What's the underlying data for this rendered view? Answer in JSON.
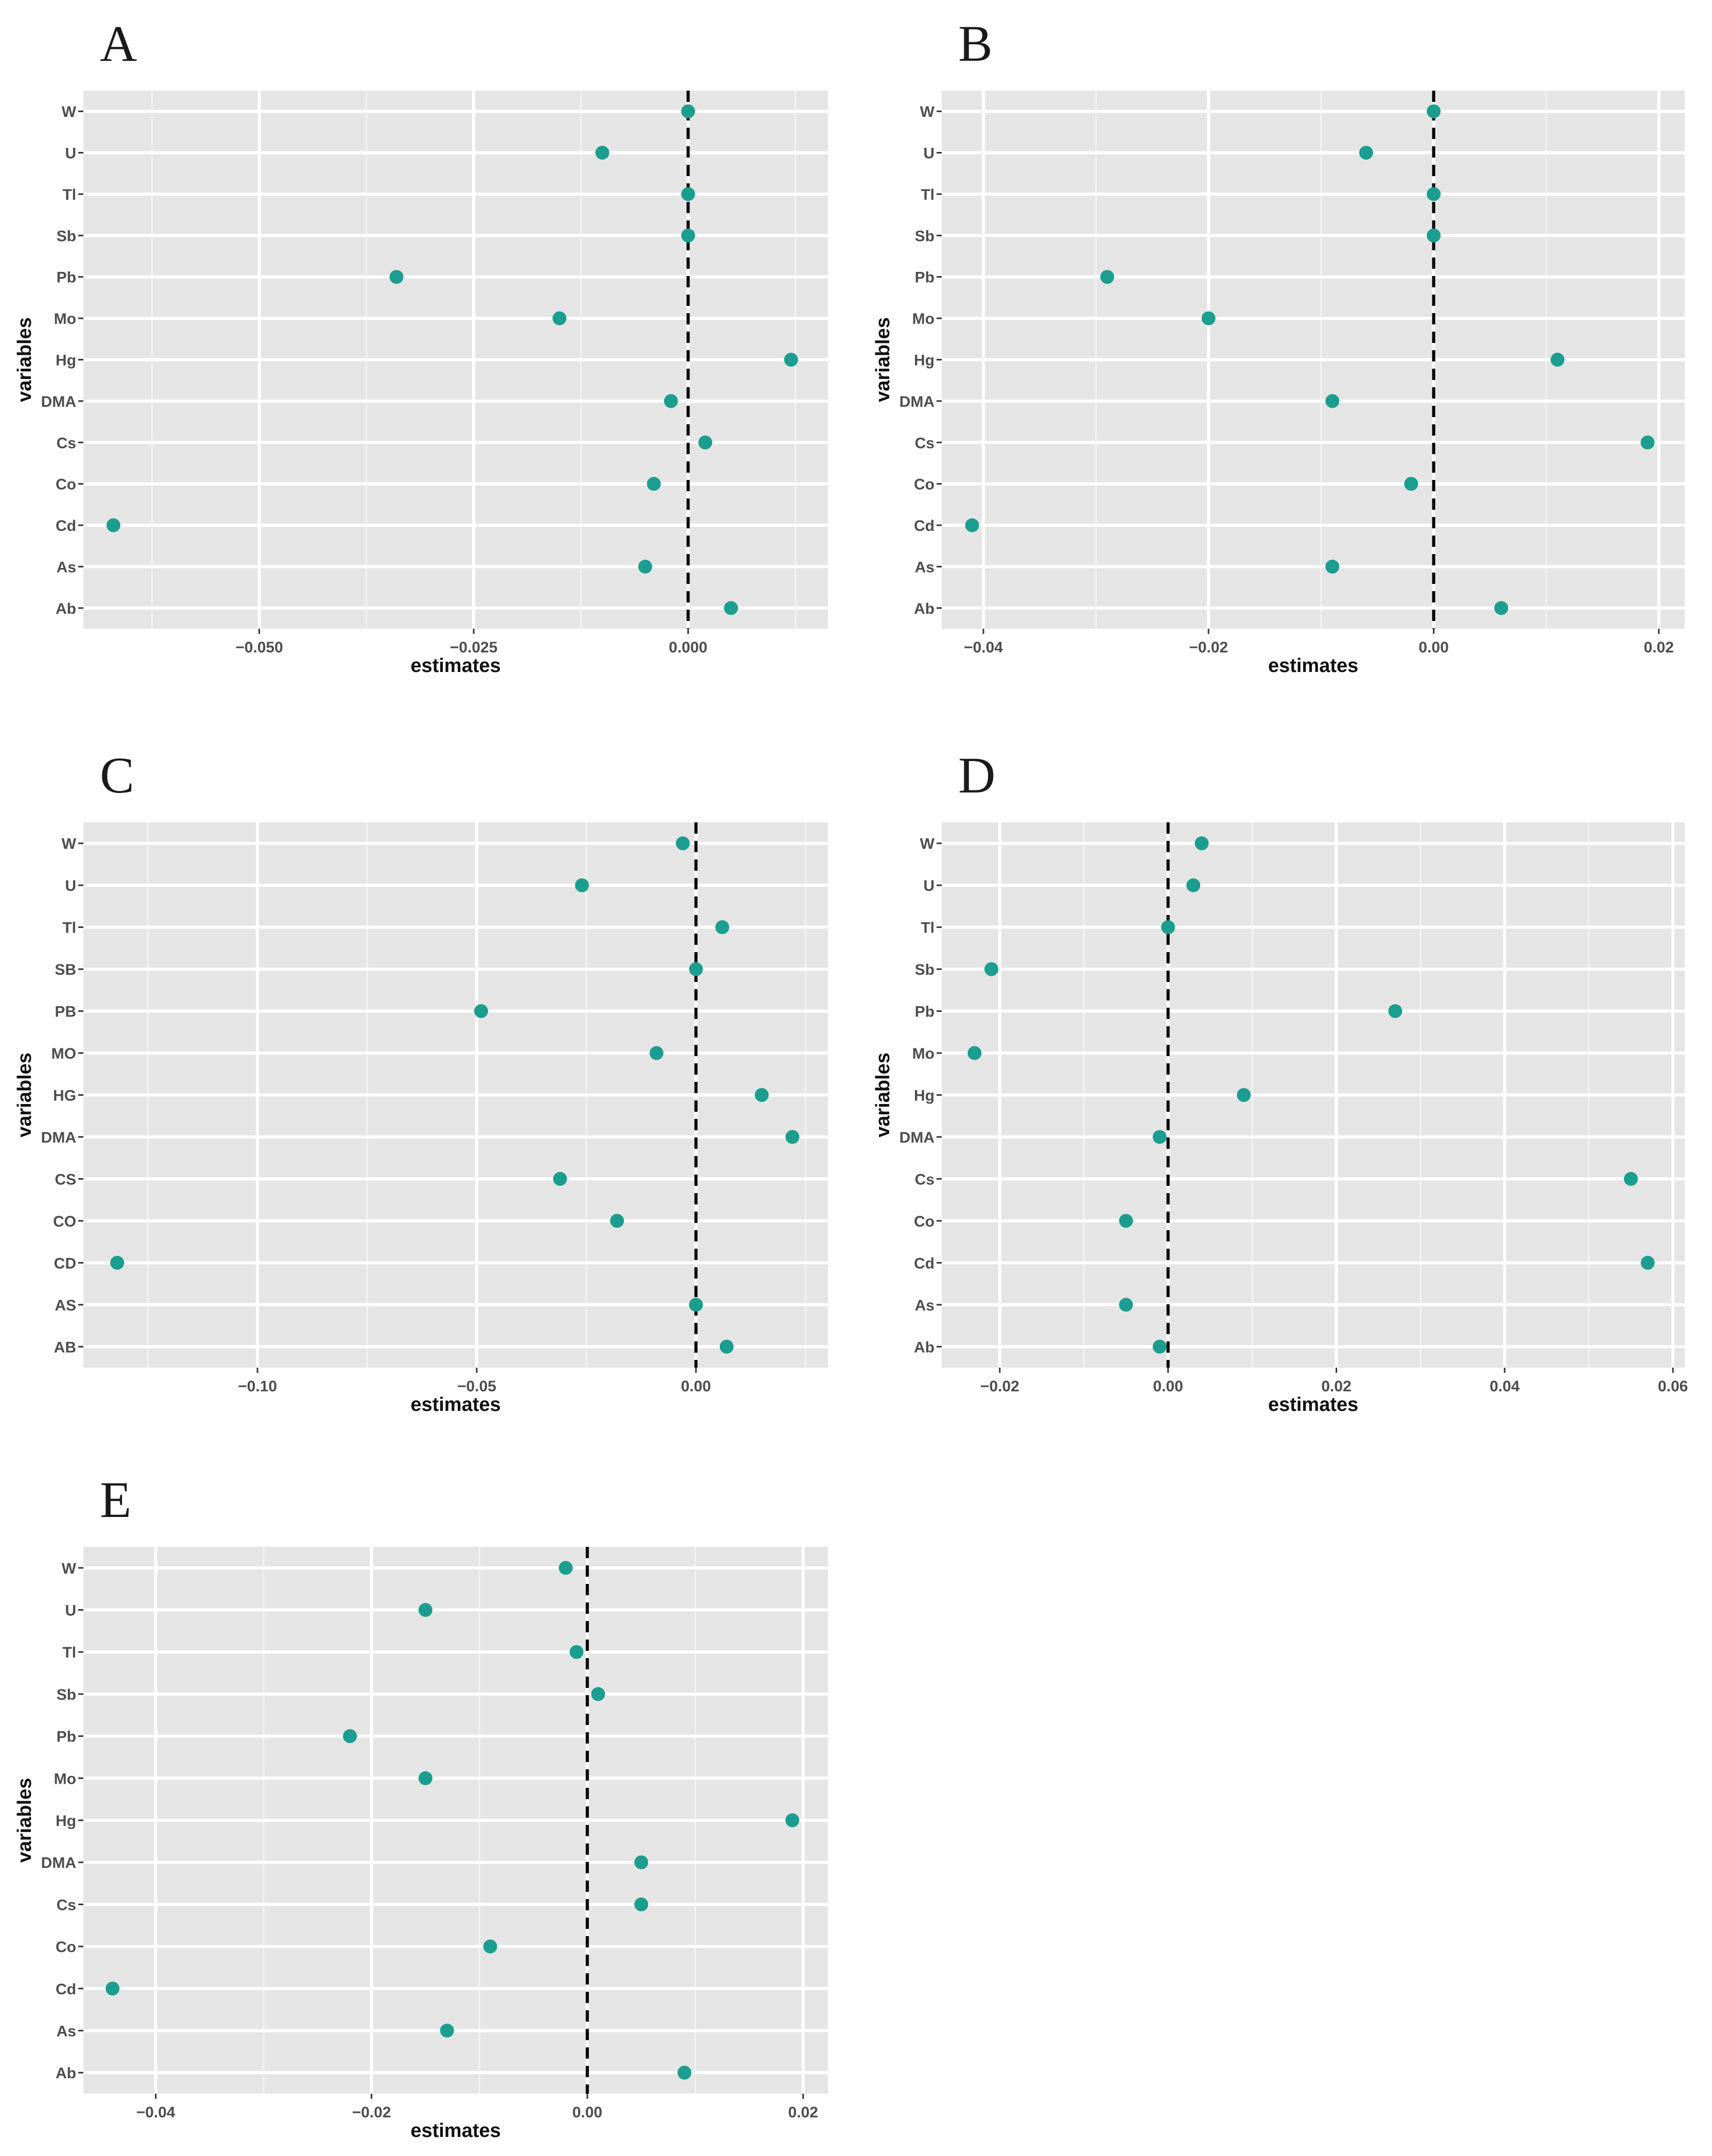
{
  "figure": {
    "point_color": "#1b9e8f",
    "panel_background": "#e5e5e5",
    "grid_major_color": "#ffffff",
    "reference_line_color": "#000000"
  },
  "chart_data": [
    {
      "panel": "A",
      "type": "scatter",
      "xlabel": "estimates",
      "ylabel": "variables",
      "categories": [
        "W",
        "U",
        "Tl",
        "Sb",
        "Pb",
        "Mo",
        "Hg",
        "DMA",
        "Cs",
        "Co",
        "Cd",
        "As",
        "Ab"
      ],
      "values": [
        0.0,
        -0.01,
        0.0,
        0.0,
        -0.034,
        -0.015,
        0.012,
        -0.002,
        0.002,
        -0.004,
        -0.067,
        -0.005,
        0.005
      ],
      "xlim": [
        -0.0705,
        0.0163
      ],
      "x_ticks": [
        -0.05,
        -0.025,
        0.0
      ],
      "x_tick_labels": [
        "−0.050",
        "−0.025",
        "0.000"
      ],
      "reference_line": 0,
      "grid": true
    },
    {
      "panel": "B",
      "type": "scatter",
      "xlabel": "estimates",
      "ylabel": "variables",
      "categories": [
        "W",
        "U",
        "Tl",
        "Sb",
        "Pb",
        "Mo",
        "Hg",
        "DMA",
        "Cs",
        "Co",
        "Cd",
        "As",
        "Ab"
      ],
      "values": [
        0.0,
        -0.006,
        0.0,
        0.0,
        -0.029,
        -0.02,
        0.011,
        -0.009,
        0.019,
        -0.002,
        -0.041,
        -0.009,
        0.006
      ],
      "xlim": [
        -0.0437,
        0.0223
      ],
      "x_ticks": [
        -0.04,
        -0.02,
        0.0,
        0.02
      ],
      "x_tick_labels": [
        "−0.04",
        "−0.02",
        "0.00",
        "0.02"
      ],
      "reference_line": 0,
      "grid": true
    },
    {
      "panel": "C",
      "type": "scatter",
      "xlabel": "estimates",
      "ylabel": "variables",
      "categories": [
        "W",
        "U",
        "Tl",
        "SB",
        "PB",
        "MO",
        "HG",
        "DMA",
        "CS",
        "CO",
        "CD",
        "AS",
        "AB"
      ],
      "values": [
        -0.003,
        -0.026,
        0.006,
        0.0,
        -0.049,
        -0.009,
        0.015,
        0.022,
        -0.031,
        -0.018,
        -0.132,
        0.0,
        0.007
      ],
      "xlim": [
        -0.1397,
        0.0301
      ],
      "x_ticks": [
        -0.1,
        -0.05,
        0.0
      ],
      "x_tick_labels": [
        "−0.10",
        "−0.05",
        "0.00"
      ],
      "reference_line": 0,
      "grid": true
    },
    {
      "panel": "D",
      "type": "scatter",
      "xlabel": "estimates",
      "ylabel": "variables",
      "categories": [
        "W",
        "U",
        "Tl",
        "Sb",
        "Pb",
        "Mo",
        "Hg",
        "DMA",
        "Cs",
        "Co",
        "Cd",
        "As",
        "Ab"
      ],
      "values": [
        0.004,
        0.003,
        0.0,
        -0.021,
        0.027,
        -0.023,
        0.009,
        -0.001,
        0.055,
        -0.005,
        0.057,
        -0.005,
        -0.001
      ],
      "xlim": [
        -0.0269,
        0.0614
      ],
      "x_ticks": [
        -0.02,
        0.0,
        0.02,
        0.04,
        0.06
      ],
      "x_tick_labels": [
        "−0.02",
        "0.00",
        "0.02",
        "0.04",
        "0.06"
      ],
      "reference_line": 0,
      "grid": true
    },
    {
      "panel": "E",
      "type": "scatter",
      "xlabel": "estimates",
      "ylabel": "variables",
      "categories": [
        "W",
        "U",
        "Tl",
        "Sb",
        "Pb",
        "Mo",
        "Hg",
        "DMA",
        "Cs",
        "Co",
        "Cd",
        "As",
        "Ab"
      ],
      "values": [
        -0.002,
        -0.015,
        -0.001,
        0.001,
        -0.022,
        -0.015,
        0.019,
        0.005,
        0.005,
        -0.009,
        -0.044,
        -0.013,
        0.009
      ],
      "xlim": [
        -0.0467,
        0.0223
      ],
      "x_ticks": [
        -0.04,
        -0.02,
        0.0,
        0.02
      ],
      "x_tick_labels": [
        "−0.04",
        "−0.02",
        "0.00",
        "0.02"
      ],
      "reference_line": 0,
      "grid": true
    }
  ]
}
